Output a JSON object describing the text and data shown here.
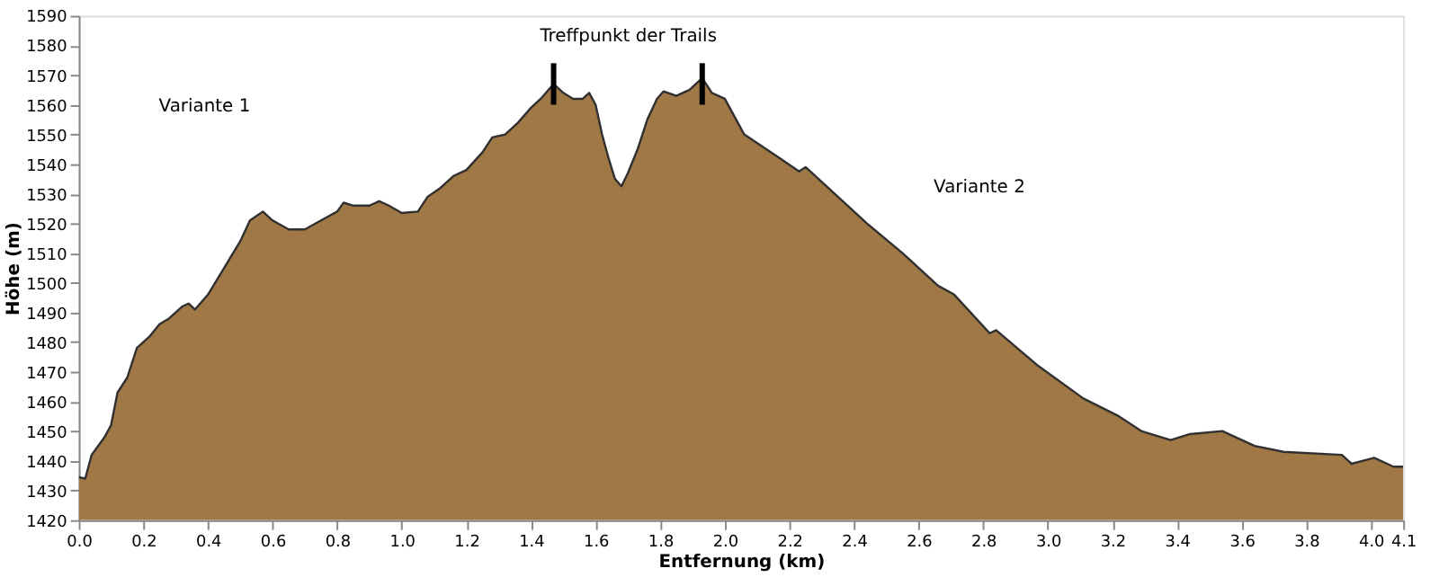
{
  "chart_data": {
    "type": "area",
    "xlabel": "Entfernung  (km)",
    "ylabel": "Höhe (m)",
    "x": [
      0.0,
      0.02,
      0.04,
      0.08,
      0.1,
      0.12,
      0.15,
      0.18,
      0.22,
      0.25,
      0.28,
      0.32,
      0.34,
      0.36,
      0.4,
      0.45,
      0.5,
      0.53,
      0.57,
      0.6,
      0.65,
      0.7,
      0.75,
      0.8,
      0.82,
      0.85,
      0.9,
      0.93,
      0.96,
      1.0,
      1.05,
      1.08,
      1.12,
      1.16,
      1.2,
      1.25,
      1.28,
      1.32,
      1.36,
      1.4,
      1.43,
      1.47,
      1.5,
      1.53,
      1.56,
      1.58,
      1.6,
      1.62,
      1.64,
      1.66,
      1.68,
      1.7,
      1.73,
      1.76,
      1.79,
      1.81,
      1.85,
      1.89,
      1.93,
      1.96,
      2.0,
      2.06,
      2.17,
      2.23,
      2.25,
      2.3,
      2.44,
      2.55,
      2.66,
      2.71,
      2.82,
      2.84,
      2.97,
      3.11,
      3.22,
      3.29,
      3.38,
      3.44,
      3.54,
      3.64,
      3.73,
      3.91,
      3.94,
      4.01,
      4.07,
      4.1
    ],
    "series": [
      {
        "type": "bar",
        "color": "#000000",
        "x": [
          1.47,
          1.93
        ],
        "base": [
          1560,
          1560
        ],
        "values": [
          14,
          14
        ]
      },
      {
        "color": "#a07845",
        "values": [
          1434.5,
          1434,
          1442,
          1448,
          1452,
          1463,
          1468,
          1478,
          1482,
          1486,
          1488,
          1492,
          1493,
          1491,
          1496,
          1505,
          1514,
          1521,
          1524,
          1521,
          1518,
          1518,
          1521,
          1524,
          1527,
          1526,
          1526,
          1527.5,
          1526,
          1523.5,
          1524,
          1529,
          1532,
          1536,
          1538,
          1544,
          1549,
          1550,
          1554,
          1559,
          1562,
          1567,
          1564,
          1562,
          1562,
          1564,
          1560,
          1550,
          1542,
          1535,
          1532.5,
          1537,
          1545,
          1555,
          1562,
          1564.5,
          1563,
          1565,
          1569,
          1564,
          1562,
          1550,
          1542,
          1537.5,
          1539,
          1534,
          1520,
          1510,
          1499,
          1496,
          1483,
          1484,
          1472,
          1461,
          1455,
          1450,
          1447,
          1449,
          1450,
          1445,
          1443,
          1442,
          1439,
          1441,
          1438,
          1438
        ]
      }
    ],
    "xlim": [
      0,
      4.1
    ],
    "xticks": [
      {
        "value": 0,
        "label": "0.0"
      },
      0.2,
      0.4,
      0.6,
      0.8,
      {
        "value": 1,
        "label": "1.0"
      },
      1.2,
      1.4,
      1.6,
      1.8,
      {
        "value": 2,
        "label": "2.0"
      },
      2.2,
      2.4,
      2.6,
      2.8,
      {
        "value": 3,
        "label": "3.0"
      },
      3.2,
      3.4,
      3.6,
      3.8,
      {
        "value": 4,
        "label": "4.0"
      },
      4.1
    ],
    "ylim": [
      1420,
      1590
    ],
    "yticks": [
      1420,
      1430,
      1440,
      1450,
      1460,
      1470,
      1480,
      1490,
      1500,
      1510,
      1520,
      1530,
      1540,
      1550,
      1560,
      1570,
      1580,
      1590
    ],
    "annotations": [
      "Treffpunkt der Trails",
      "Variante 1",
      "Variante 2"
    ],
    "grid": false
  }
}
